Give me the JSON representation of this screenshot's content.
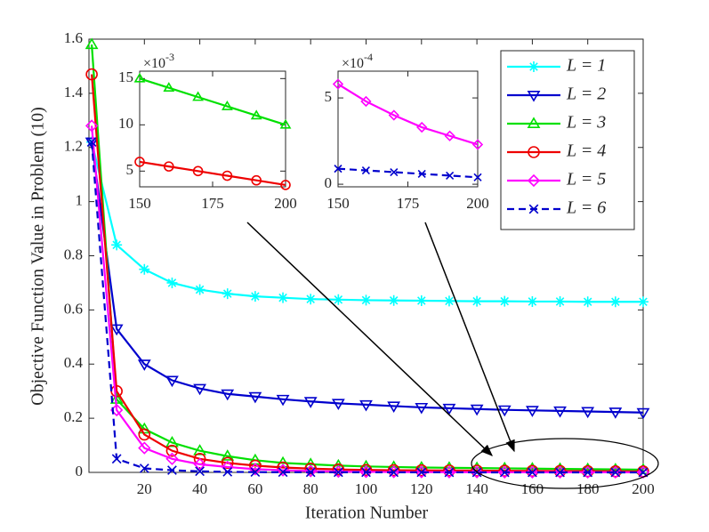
{
  "chart_data": [
    {
      "type": "line",
      "xlabel": "Iteration Number",
      "ylabel": "Objective Function Value in Problem (10)",
      "x": [
        1,
        10,
        20,
        30,
        40,
        50,
        60,
        70,
        80,
        90,
        100,
        110,
        120,
        130,
        140,
        150,
        160,
        170,
        180,
        190,
        200
      ],
      "xlim": [
        0,
        200
      ],
      "xticks": [
        20,
        40,
        60,
        80,
        100,
        120,
        140,
        160,
        180,
        200
      ],
      "ylim": [
        0,
        1.6
      ],
      "yticks": [
        0,
        0.2,
        0.4,
        0.6,
        0.8,
        1,
        1.2,
        1.4,
        1.6
      ],
      "legend": "northeast",
      "series": [
        {
          "name": "L = 1",
          "color": "#00ffff",
          "marker": "asterisk",
          "dashed": false,
          "values": [
            1.22,
            0.84,
            0.75,
            0.7,
            0.675,
            0.66,
            0.65,
            0.645,
            0.64,
            0.638,
            0.636,
            0.635,
            0.634,
            0.633,
            0.632,
            0.632,
            0.631,
            0.631,
            0.63,
            0.63,
            0.63
          ]
        },
        {
          "name": "L = 2",
          "color": "#0000cd",
          "marker": "triangle-down",
          "dashed": false,
          "values": [
            1.22,
            0.53,
            0.4,
            0.34,
            0.31,
            0.29,
            0.28,
            0.27,
            0.262,
            0.255,
            0.25,
            0.245,
            0.24,
            0.237,
            0.234,
            0.231,
            0.229,
            0.227,
            0.225,
            0.223,
            0.221
          ]
        },
        {
          "name": "L = 3",
          "color": "#00e000",
          "marker": "triangle-up",
          "dashed": false,
          "values": [
            1.58,
            0.27,
            0.16,
            0.11,
            0.08,
            0.06,
            0.045,
            0.035,
            0.03,
            0.025,
            0.022,
            0.02,
            0.018,
            0.017,
            0.016,
            0.015,
            0.014,
            0.013,
            0.012,
            0.011,
            0.01
          ]
        },
        {
          "name": "L = 4",
          "color": "#ee0000",
          "marker": "circle",
          "dashed": false,
          "values": [
            1.47,
            0.3,
            0.14,
            0.08,
            0.05,
            0.035,
            0.025,
            0.018,
            0.014,
            0.011,
            0.009,
            0.008,
            0.0075,
            0.007,
            0.0066,
            0.006,
            0.0055,
            0.005,
            0.0045,
            0.004,
            0.0035
          ]
        },
        {
          "name": "L = 5",
          "color": "#ff00ff",
          "marker": "diamond",
          "dashed": false,
          "values": [
            1.28,
            0.23,
            0.09,
            0.05,
            0.03,
            0.02,
            0.012,
            0.008,
            0.005,
            0.003,
            0.002,
            0.0015,
            0.0011,
            0.0009,
            0.0007,
            0.00058,
            0.00048,
            0.0004,
            0.00033,
            0.00028,
            0.00023
          ]
        },
        {
          "name": "L = 6",
          "color": "#0000cd",
          "marker": "x",
          "dashed": true,
          "values": [
            1.22,
            0.05,
            0.015,
            0.008,
            0.004,
            0.002,
            0.001,
            0.0007,
            0.0005,
            0.0004,
            0.0003,
            0.00025,
            0.0002,
            0.00015,
            0.00012,
            9e-05,
            8e-05,
            7e-05,
            6e-05,
            5e-05,
            4e-05
          ]
        }
      ]
    },
    {
      "type": "line",
      "x": [
        150,
        160,
        170,
        180,
        190,
        200
      ],
      "xlim": [
        150,
        200
      ],
      "xticks": [
        150,
        175,
        200
      ],
      "ylim": [
        3.3,
        15.8
      ],
      "yticks": [
        5,
        10,
        15
      ],
      "y_multiplier": {
        "base": "×10",
        "exponent": "-3"
      },
      "series": [
        {
          "color": "#00e000",
          "marker": "triangle-up",
          "values": [
            15,
            14,
            13,
            12,
            11,
            10
          ]
        },
        {
          "color": "#ee0000",
          "marker": "circle",
          "values": [
            6,
            5.5,
            5,
            4.5,
            4,
            3.5
          ]
        }
      ]
    },
    {
      "type": "line",
      "x": [
        150,
        160,
        170,
        180,
        190,
        200
      ],
      "xlim": [
        150,
        200
      ],
      "xticks": [
        150,
        175,
        200
      ],
      "ylim": [
        -0.15,
        6.55
      ],
      "yticks": [
        0,
        5
      ],
      "y_multiplier": {
        "base": "×10",
        "exponent": "-4"
      },
      "series": [
        {
          "color": "#ff00ff",
          "marker": "diamond",
          "values": [
            5.8,
            4.8,
            4,
            3.3,
            2.8,
            2.3
          ]
        },
        {
          "color": "#0000cd",
          "marker": "x",
          "dashed": true,
          "values": [
            0.9,
            0.8,
            0.7,
            0.6,
            0.5,
            0.4
          ]
        }
      ]
    }
  ]
}
